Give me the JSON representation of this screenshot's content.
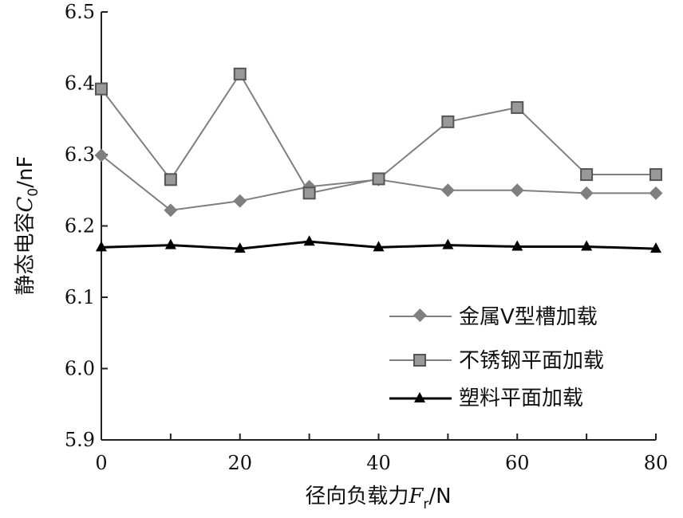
{
  "chart_data": {
    "type": "line",
    "title": "",
    "xlabel": "径向负载力F_r/N",
    "xlabel_main": "径向负载力",
    "xlabel_var": "F",
    "xlabel_sub": "r",
    "xlabel_unit": "/N",
    "ylabel": "静态电容C_0/nF",
    "ylabel_main": "静态电容",
    "ylabel_var": "C",
    "ylabel_sub": "0",
    "ylabel_unit": "/nF",
    "xlim": [
      0,
      80
    ],
    "ylim": [
      5.9,
      6.5
    ],
    "xticks": [
      0,
      20,
      40,
      60,
      80
    ],
    "xtick_labels": [
      "0",
      "20",
      "40",
      "60",
      "80"
    ],
    "yticks": [
      5.9,
      6.0,
      6.1,
      6.2,
      6.3,
      6.4,
      6.5
    ],
    "ytick_labels": [
      "5.9",
      "6.0",
      "6.1",
      "6.2",
      "6.3",
      "6.4",
      "6.5"
    ],
    "grid": false,
    "legend_position": "bottom-right",
    "x": [
      0,
      10,
      20,
      30,
      40,
      50,
      60,
      70,
      80
    ],
    "series": [
      {
        "name": "金属V型槽加载",
        "marker": "diamond",
        "color": "#7f7f7f",
        "values": [
          6.299,
          6.222,
          6.235,
          6.255,
          6.265,
          6.25,
          6.25,
          6.246,
          6.246
        ]
      },
      {
        "name": "不锈钢平面加载",
        "marker": "square",
        "color": "#7f7f7f",
        "values": [
          6.392,
          6.265,
          6.413,
          6.246,
          6.266,
          6.346,
          6.366,
          6.272,
          6.272
        ]
      },
      {
        "name": "塑料平面加载",
        "marker": "triangle",
        "color": "#000000",
        "values": [
          6.17,
          6.173,
          6.168,
          6.178,
          6.17,
          6.173,
          6.171,
          6.171,
          6.168
        ]
      }
    ]
  }
}
